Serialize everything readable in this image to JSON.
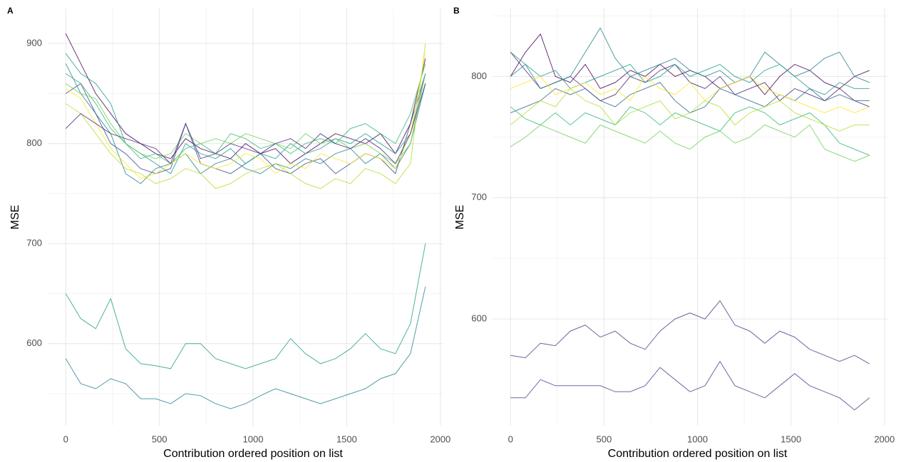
{
  "chart_data": [
    {
      "type": "line",
      "title": "A",
      "x_label": "Contribution ordered position on list",
      "y_label": "MSE",
      "x": [
        0,
        80,
        160,
        240,
        320,
        400,
        480,
        560,
        640,
        720,
        800,
        880,
        960,
        1040,
        1120,
        1200,
        1280,
        1360,
        1440,
        1520,
        1600,
        1680,
        1760,
        1840,
        1920
      ],
      "xlim": [
        -96,
        2016
      ],
      "xticks": [
        0,
        500,
        1000,
        1500,
        2000
      ],
      "minor_xticks": [
        250,
        750,
        1250,
        1750
      ],
      "ylim": [
        518,
        935
      ],
      "yticks": [
        600,
        700,
        800,
        900
      ],
      "minor_yticks": [
        550,
        650,
        750,
        850
      ],
      "grid": true,
      "series": [
        {
          "color": "#440154",
          "values": [
            910,
            880,
            850,
            830,
            810,
            800,
            790,
            785,
            805,
            795,
            790,
            785,
            800,
            790,
            795,
            780,
            790,
            800,
            810,
            805,
            800,
            810,
            790,
            820,
            885
          ]
        },
        {
          "color": "#3e4989",
          "values": [
            850,
            860,
            830,
            800,
            790,
            775,
            770,
            775,
            820,
            780,
            775,
            770,
            780,
            790,
            775,
            770,
            780,
            785,
            770,
            780,
            790,
            785,
            770,
            820,
            870
          ]
        },
        {
          "color": "#26828e",
          "values": [
            880,
            850,
            830,
            810,
            770,
            760,
            775,
            780,
            790,
            770,
            780,
            785,
            775,
            770,
            780,
            775,
            785,
            780,
            790,
            795,
            780,
            790,
            775,
            800,
            860
          ]
        },
        {
          "color": "#1f9e89",
          "values": [
            890,
            870,
            860,
            840,
            800,
            790,
            780,
            770,
            800,
            790,
            785,
            795,
            780,
            790,
            785,
            800,
            790,
            795,
            805,
            800,
            810,
            800,
            790,
            810,
            870
          ]
        },
        {
          "color": "#35b779",
          "values": [
            870,
            860,
            840,
            815,
            800,
            785,
            790,
            780,
            795,
            800,
            790,
            810,
            805,
            795,
            800,
            790,
            800,
            805,
            800,
            815,
            820,
            810,
            800,
            830,
            880
          ]
        },
        {
          "color": "#6ece58",
          "values": [
            860,
            850,
            845,
            820,
            800,
            790,
            785,
            790,
            810,
            800,
            805,
            800,
            810,
            805,
            800,
            795,
            810,
            800,
            805,
            795,
            800,
            790,
            780,
            800,
            870
          ]
        },
        {
          "color": "#b5de2b",
          "values": [
            840,
            830,
            810,
            790,
            775,
            770,
            760,
            765,
            775,
            770,
            755,
            760,
            770,
            775,
            780,
            770,
            760,
            755,
            765,
            760,
            775,
            770,
            760,
            780,
            900
          ]
        },
        {
          "color": "#fde725",
          "values": [
            855,
            845,
            820,
            795,
            780,
            765,
            770,
            780,
            790,
            780,
            775,
            780,
            790,
            785,
            770,
            780,
            775,
            790,
            785,
            780,
            790,
            785,
            775,
            810,
            890
          ]
        },
        {
          "color": "#482878",
          "values": [
            815,
            830,
            820,
            810,
            805,
            800,
            795,
            780,
            820,
            785,
            790,
            800,
            795,
            790,
            800,
            805,
            795,
            810,
            800,
            795,
            805,
            795,
            780,
            810,
            860
          ]
        },
        {
          "color": "#1f9e89",
          "values": [
            650,
            625,
            615,
            645,
            595,
            580,
            578,
            575,
            600,
            600,
            585,
            580,
            575,
            580,
            585,
            605,
            590,
            580,
            585,
            595,
            610,
            595,
            590,
            620,
            700
          ]
        },
        {
          "color": "#26828e",
          "values": [
            585,
            560,
            555,
            565,
            560,
            545,
            545,
            540,
            550,
            548,
            540,
            535,
            540,
            548,
            555,
            550,
            545,
            540,
            545,
            550,
            555,
            565,
            570,
            590,
            657
          ]
        }
      ]
    },
    {
      "type": "line",
      "title": "B",
      "x_label": "Contribution ordered position on list",
      "y_label": "MSE",
      "x": [
        0,
        80,
        160,
        240,
        320,
        400,
        480,
        560,
        640,
        720,
        800,
        880,
        960,
        1040,
        1120,
        1200,
        1280,
        1360,
        1440,
        1520,
        1600,
        1680,
        1760,
        1840,
        1920
      ],
      "xlim": [
        -96,
        2016
      ],
      "xticks": [
        0,
        500,
        1000,
        1500,
        2000
      ],
      "minor_xticks": [
        250,
        750,
        1250,
        1750
      ],
      "ylim": [
        512,
        856
      ],
      "yticks": [
        600,
        700,
        800
      ],
      "minor_yticks": [
        650,
        750,
        850
      ],
      "grid": true,
      "series": [
        {
          "color": "#440154",
          "values": [
            800,
            820,
            835,
            800,
            795,
            810,
            790,
            795,
            805,
            800,
            810,
            800,
            805,
            800,
            790,
            795,
            800,
            785,
            800,
            810,
            805,
            795,
            790,
            800,
            805
          ]
        },
        {
          "color": "#482878",
          "values": [
            820,
            805,
            790,
            795,
            800,
            790,
            780,
            785,
            800,
            795,
            805,
            810,
            795,
            790,
            800,
            785,
            790,
            795,
            780,
            790,
            785,
            780,
            790,
            780,
            775
          ]
        },
        {
          "color": "#31688e",
          "values": [
            770,
            775,
            780,
            790,
            785,
            790,
            780,
            775,
            785,
            790,
            795,
            780,
            770,
            775,
            790,
            785,
            780,
            775,
            785,
            780,
            790,
            780,
            785,
            780,
            780
          ]
        },
        {
          "color": "#26828e",
          "values": [
            800,
            810,
            790,
            795,
            800,
            820,
            840,
            815,
            800,
            805,
            810,
            815,
            805,
            800,
            805,
            795,
            800,
            820,
            810,
            800,
            805,
            815,
            820,
            800,
            795
          ]
        },
        {
          "color": "#1f9e89",
          "values": [
            820,
            810,
            800,
            805,
            790,
            795,
            800,
            805,
            810,
            795,
            800,
            810,
            800,
            805,
            810,
            800,
            795,
            805,
            810,
            800,
            790,
            785,
            795,
            790,
            790
          ]
        },
        {
          "color": "#35b779",
          "values": [
            775,
            765,
            760,
            770,
            760,
            770,
            765,
            760,
            775,
            770,
            760,
            770,
            765,
            760,
            755,
            770,
            775,
            770,
            760,
            765,
            770,
            760,
            745,
            740,
            735
          ]
        },
        {
          "color": "#6ece58",
          "values": [
            742,
            750,
            760,
            755,
            750,
            745,
            760,
            755,
            750,
            745,
            755,
            745,
            740,
            750,
            755,
            745,
            750,
            760,
            755,
            750,
            760,
            740,
            735,
            730,
            735
          ]
        },
        {
          "color": "#b5de2b",
          "values": [
            760,
            770,
            780,
            775,
            790,
            780,
            775,
            760,
            770,
            775,
            780,
            765,
            770,
            780,
            775,
            760,
            770,
            775,
            780,
            770,
            765,
            760,
            755,
            760,
            760
          ]
        },
        {
          "color": "#fde725",
          "values": [
            790,
            795,
            800,
            785,
            790,
            795,
            785,
            790,
            780,
            800,
            790,
            785,
            795,
            780,
            790,
            795,
            800,
            790,
            785,
            780,
            775,
            770,
            775,
            770,
            775
          ]
        },
        {
          "color": "#3e4989",
          "values": [
            570,
            568,
            580,
            578,
            590,
            595,
            585,
            590,
            580,
            575,
            590,
            600,
            605,
            600,
            615,
            595,
            590,
            580,
            590,
            585,
            575,
            570,
            565,
            570,
            563
          ]
        },
        {
          "color": "#3e4989",
          "values": [
            535,
            535,
            550,
            545,
            545,
            545,
            545,
            540,
            540,
            545,
            560,
            550,
            540,
            545,
            565,
            545,
            540,
            535,
            545,
            555,
            545,
            540,
            535,
            525,
            535
          ]
        }
      ]
    }
  ]
}
